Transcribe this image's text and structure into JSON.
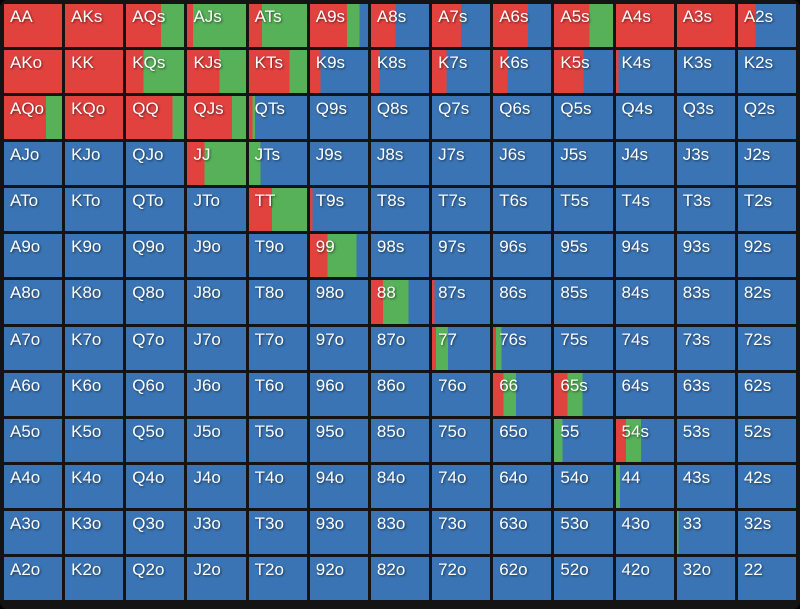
{
  "meta": {
    "title": "Preflop poker hand range grid",
    "description": "13x13 poker starting-hand matrix; each cell shows action frequencies as left-to-right color strips"
  },
  "colors": {
    "raise_red": "#e2423e",
    "call_green": "#57b158",
    "fold_blue": "#3a74b4",
    "grid_background": "#141414",
    "label_text": "#ffffff"
  },
  "chart_data": {
    "type": "heatmap",
    "rows": 13,
    "cols": 13,
    "legend": {
      "red": "raise %",
      "green": "call %",
      "blue": "fold %"
    },
    "cells": [
      {
        "h": "AA",
        "r": 100,
        "c": 0,
        "f": 0
      },
      {
        "h": "AKs",
        "r": 100,
        "c": 0,
        "f": 0
      },
      {
        "h": "AQs",
        "r": 60,
        "c": 40,
        "f": 0
      },
      {
        "h": "AJs",
        "r": 10,
        "c": 90,
        "f": 0
      },
      {
        "h": "ATs",
        "r": 22,
        "c": 78,
        "f": 0
      },
      {
        "h": "A9s",
        "r": 64,
        "c": 21,
        "f": 15
      },
      {
        "h": "A8s",
        "r": 42,
        "c": 0,
        "f": 58
      },
      {
        "h": "A7s",
        "r": 50,
        "c": 0,
        "f": 50
      },
      {
        "h": "A6s",
        "r": 60,
        "c": 0,
        "f": 40
      },
      {
        "h": "A5s",
        "r": 60,
        "c": 40,
        "f": 0
      },
      {
        "h": "A4s",
        "r": 100,
        "c": 0,
        "f": 0
      },
      {
        "h": "A3s",
        "r": 100,
        "c": 0,
        "f": 0
      },
      {
        "h": "A2s",
        "r": 30,
        "c": 0,
        "f": 70
      },
      {
        "h": "AKo",
        "r": 100,
        "c": 0,
        "f": 0
      },
      {
        "h": "KK",
        "r": 100,
        "c": 0,
        "f": 0
      },
      {
        "h": "KQs",
        "r": 30,
        "c": 70,
        "f": 0
      },
      {
        "h": "KJs",
        "r": 55,
        "c": 45,
        "f": 0
      },
      {
        "h": "KTs",
        "r": 70,
        "c": 30,
        "f": 0
      },
      {
        "h": "K9s",
        "r": 18,
        "c": 0,
        "f": 82
      },
      {
        "h": "K8s",
        "r": 15,
        "c": 0,
        "f": 85
      },
      {
        "h": "K7s",
        "r": 25,
        "c": 0,
        "f": 75
      },
      {
        "h": "K6s",
        "r": 25,
        "c": 0,
        "f": 75
      },
      {
        "h": "K5s",
        "r": 50,
        "c": 0,
        "f": 50
      },
      {
        "h": "K4s",
        "r": 4,
        "c": 0,
        "f": 96
      },
      {
        "h": "K3s",
        "r": 0,
        "c": 0,
        "f": 100
      },
      {
        "h": "K2s",
        "r": 0,
        "c": 0,
        "f": 100
      },
      {
        "h": "AQo",
        "r": 72,
        "c": 28,
        "f": 0
      },
      {
        "h": "KQo",
        "r": 100,
        "c": 0,
        "f": 0
      },
      {
        "h": "QQ",
        "r": 80,
        "c": 20,
        "f": 0
      },
      {
        "h": "QJs",
        "r": 76,
        "c": 24,
        "f": 0
      },
      {
        "h": "QTs",
        "r": 6,
        "c": 4,
        "f": 90
      },
      {
        "h": "Q9s",
        "r": 0,
        "c": 0,
        "f": 100
      },
      {
        "h": "Q8s",
        "r": 0,
        "c": 0,
        "f": 100
      },
      {
        "h": "Q7s",
        "r": 0,
        "c": 0,
        "f": 100
      },
      {
        "h": "Q6s",
        "r": 0,
        "c": 0,
        "f": 100
      },
      {
        "h": "Q5s",
        "r": 0,
        "c": 0,
        "f": 100
      },
      {
        "h": "Q4s",
        "r": 0,
        "c": 0,
        "f": 100
      },
      {
        "h": "Q3s",
        "r": 0,
        "c": 0,
        "f": 100
      },
      {
        "h": "Q2s",
        "r": 0,
        "c": 0,
        "f": 100
      },
      {
        "h": "AJo",
        "r": 0,
        "c": 0,
        "f": 100
      },
      {
        "h": "KJo",
        "r": 0,
        "c": 0,
        "f": 100
      },
      {
        "h": "QJo",
        "r": 0,
        "c": 0,
        "f": 100
      },
      {
        "h": "JJ",
        "r": 30,
        "c": 70,
        "f": 0
      },
      {
        "h": "JTs",
        "r": 0,
        "c": 20,
        "f": 80
      },
      {
        "h": "J9s",
        "r": 0,
        "c": 0,
        "f": 100
      },
      {
        "h": "J8s",
        "r": 0,
        "c": 0,
        "f": 100
      },
      {
        "h": "J7s",
        "r": 0,
        "c": 0,
        "f": 100
      },
      {
        "h": "J6s",
        "r": 0,
        "c": 0,
        "f": 100
      },
      {
        "h": "J5s",
        "r": 0,
        "c": 0,
        "f": 100
      },
      {
        "h": "J4s",
        "r": 0,
        "c": 0,
        "f": 100
      },
      {
        "h": "J3s",
        "r": 0,
        "c": 0,
        "f": 100
      },
      {
        "h": "J2s",
        "r": 0,
        "c": 0,
        "f": 100
      },
      {
        "h": "ATo",
        "r": 0,
        "c": 0,
        "f": 100
      },
      {
        "h": "KTo",
        "r": 0,
        "c": 0,
        "f": 100
      },
      {
        "h": "QTo",
        "r": 0,
        "c": 0,
        "f": 100
      },
      {
        "h": "JTo",
        "r": 0,
        "c": 0,
        "f": 100
      },
      {
        "h": "TT",
        "r": 40,
        "c": 60,
        "f": 0
      },
      {
        "h": "T9s",
        "r": 4,
        "c": 0,
        "f": 96
      },
      {
        "h": "T8s",
        "r": 0,
        "c": 0,
        "f": 100
      },
      {
        "h": "T7s",
        "r": 0,
        "c": 0,
        "f": 100
      },
      {
        "h": "T6s",
        "r": 0,
        "c": 0,
        "f": 100
      },
      {
        "h": "T5s",
        "r": 0,
        "c": 0,
        "f": 100
      },
      {
        "h": "T4s",
        "r": 0,
        "c": 0,
        "f": 100
      },
      {
        "h": "T3s",
        "r": 0,
        "c": 0,
        "f": 100
      },
      {
        "h": "T2s",
        "r": 0,
        "c": 0,
        "f": 100
      },
      {
        "h": "A9o",
        "r": 0,
        "c": 0,
        "f": 100
      },
      {
        "h": "K9o",
        "r": 0,
        "c": 0,
        "f": 100
      },
      {
        "h": "Q9o",
        "r": 0,
        "c": 0,
        "f": 100
      },
      {
        "h": "J9o",
        "r": 0,
        "c": 0,
        "f": 100
      },
      {
        "h": "T9o",
        "r": 0,
        "c": 0,
        "f": 100
      },
      {
        "h": "99",
        "r": 30,
        "c": 50,
        "f": 20
      },
      {
        "h": "98s",
        "r": 0,
        "c": 0,
        "f": 100
      },
      {
        "h": "97s",
        "r": 0,
        "c": 0,
        "f": 100
      },
      {
        "h": "96s",
        "r": 0,
        "c": 0,
        "f": 100
      },
      {
        "h": "95s",
        "r": 0,
        "c": 0,
        "f": 100
      },
      {
        "h": "94s",
        "r": 0,
        "c": 0,
        "f": 100
      },
      {
        "h": "93s",
        "r": 0,
        "c": 0,
        "f": 100
      },
      {
        "h": "92s",
        "r": 0,
        "c": 0,
        "f": 100
      },
      {
        "h": "A8o",
        "r": 0,
        "c": 0,
        "f": 100
      },
      {
        "h": "K8o",
        "r": 0,
        "c": 0,
        "f": 100
      },
      {
        "h": "Q8o",
        "r": 0,
        "c": 0,
        "f": 100
      },
      {
        "h": "J8o",
        "r": 0,
        "c": 0,
        "f": 100
      },
      {
        "h": "T8o",
        "r": 0,
        "c": 0,
        "f": 100
      },
      {
        "h": "98o",
        "r": 0,
        "c": 0,
        "f": 100
      },
      {
        "h": "88",
        "r": 21,
        "c": 44,
        "f": 35
      },
      {
        "h": "87s",
        "r": 4,
        "c": 0,
        "f": 96
      },
      {
        "h": "86s",
        "r": 0,
        "c": 0,
        "f": 100
      },
      {
        "h": "85s",
        "r": 0,
        "c": 0,
        "f": 100
      },
      {
        "h": "84s",
        "r": 0,
        "c": 0,
        "f": 100
      },
      {
        "h": "83s",
        "r": 0,
        "c": 0,
        "f": 100
      },
      {
        "h": "82s",
        "r": 0,
        "c": 0,
        "f": 100
      },
      {
        "h": "A7o",
        "r": 0,
        "c": 0,
        "f": 100
      },
      {
        "h": "K7o",
        "r": 0,
        "c": 0,
        "f": 100
      },
      {
        "h": "Q7o",
        "r": 0,
        "c": 0,
        "f": 100
      },
      {
        "h": "J7o",
        "r": 0,
        "c": 0,
        "f": 100
      },
      {
        "h": "T7o",
        "r": 0,
        "c": 0,
        "f": 100
      },
      {
        "h": "97o",
        "r": 0,
        "c": 0,
        "f": 100
      },
      {
        "h": "87o",
        "r": 0,
        "c": 0,
        "f": 100
      },
      {
        "h": "77",
        "r": 7,
        "c": 21,
        "f": 72
      },
      {
        "h": "76s",
        "r": 5,
        "c": 10,
        "f": 85
      },
      {
        "h": "75s",
        "r": 0,
        "c": 0,
        "f": 100
      },
      {
        "h": "74s",
        "r": 0,
        "c": 0,
        "f": 100
      },
      {
        "h": "73s",
        "r": 0,
        "c": 0,
        "f": 100
      },
      {
        "h": "72s",
        "r": 0,
        "c": 0,
        "f": 100
      },
      {
        "h": "A6o",
        "r": 0,
        "c": 0,
        "f": 100
      },
      {
        "h": "K6o",
        "r": 0,
        "c": 0,
        "f": 100
      },
      {
        "h": "Q6o",
        "r": 0,
        "c": 0,
        "f": 100
      },
      {
        "h": "J6o",
        "r": 0,
        "c": 0,
        "f": 100
      },
      {
        "h": "T6o",
        "r": 0,
        "c": 0,
        "f": 100
      },
      {
        "h": "96o",
        "r": 0,
        "c": 0,
        "f": 100
      },
      {
        "h": "86o",
        "r": 0,
        "c": 0,
        "f": 100
      },
      {
        "h": "76o",
        "r": 0,
        "c": 0,
        "f": 100
      },
      {
        "h": "66",
        "r": 18,
        "c": 22,
        "f": 60
      },
      {
        "h": "65s",
        "r": 23,
        "c": 25,
        "f": 52
      },
      {
        "h": "64s",
        "r": 0,
        "c": 0,
        "f": 100
      },
      {
        "h": "63s",
        "r": 0,
        "c": 0,
        "f": 100
      },
      {
        "h": "62s",
        "r": 0,
        "c": 0,
        "f": 100
      },
      {
        "h": "A5o",
        "r": 0,
        "c": 0,
        "f": 100
      },
      {
        "h": "K5o",
        "r": 0,
        "c": 0,
        "f": 100
      },
      {
        "h": "Q5o",
        "r": 0,
        "c": 0,
        "f": 100
      },
      {
        "h": "J5o",
        "r": 0,
        "c": 0,
        "f": 100
      },
      {
        "h": "T5o",
        "r": 0,
        "c": 0,
        "f": 100
      },
      {
        "h": "95o",
        "r": 0,
        "c": 0,
        "f": 100
      },
      {
        "h": "85o",
        "r": 0,
        "c": 0,
        "f": 100
      },
      {
        "h": "75o",
        "r": 0,
        "c": 0,
        "f": 100
      },
      {
        "h": "65o",
        "r": 0,
        "c": 0,
        "f": 100
      },
      {
        "h": "55",
        "r": 0,
        "c": 14,
        "f": 86
      },
      {
        "h": "54s",
        "r": 17,
        "c": 26,
        "f": 57
      },
      {
        "h": "53s",
        "r": 0,
        "c": 0,
        "f": 100
      },
      {
        "h": "52s",
        "r": 0,
        "c": 0,
        "f": 100
      },
      {
        "h": "A4o",
        "r": 0,
        "c": 0,
        "f": 100
      },
      {
        "h": "K4o",
        "r": 0,
        "c": 0,
        "f": 100
      },
      {
        "h": "Q4o",
        "r": 0,
        "c": 0,
        "f": 100
      },
      {
        "h": "J4o",
        "r": 0,
        "c": 0,
        "f": 100
      },
      {
        "h": "T4o",
        "r": 0,
        "c": 0,
        "f": 100
      },
      {
        "h": "94o",
        "r": 0,
        "c": 0,
        "f": 100
      },
      {
        "h": "84o",
        "r": 0,
        "c": 0,
        "f": 100
      },
      {
        "h": "74o",
        "r": 0,
        "c": 0,
        "f": 100
      },
      {
        "h": "64o",
        "r": 0,
        "c": 0,
        "f": 100
      },
      {
        "h": "54o",
        "r": 0,
        "c": 0,
        "f": 100
      },
      {
        "h": "44",
        "r": 0,
        "c": 7,
        "f": 93
      },
      {
        "h": "43s",
        "r": 0,
        "c": 0,
        "f": 100
      },
      {
        "h": "42s",
        "r": 0,
        "c": 0,
        "f": 100
      },
      {
        "h": "A3o",
        "r": 0,
        "c": 0,
        "f": 100
      },
      {
        "h": "K3o",
        "r": 0,
        "c": 0,
        "f": 100
      },
      {
        "h": "Q3o",
        "r": 0,
        "c": 0,
        "f": 100
      },
      {
        "h": "J3o",
        "r": 0,
        "c": 0,
        "f": 100
      },
      {
        "h": "T3o",
        "r": 0,
        "c": 0,
        "f": 100
      },
      {
        "h": "93o",
        "r": 0,
        "c": 0,
        "f": 100
      },
      {
        "h": "83o",
        "r": 0,
        "c": 0,
        "f": 100
      },
      {
        "h": "73o",
        "r": 0,
        "c": 0,
        "f": 100
      },
      {
        "h": "63o",
        "r": 0,
        "c": 0,
        "f": 100
      },
      {
        "h": "53o",
        "r": 0,
        "c": 0,
        "f": 100
      },
      {
        "h": "43o",
        "r": 0,
        "c": 0,
        "f": 100
      },
      {
        "h": "33",
        "r": 0,
        "c": 3,
        "f": 97
      },
      {
        "h": "32s",
        "r": 0,
        "c": 0,
        "f": 100
      },
      {
        "h": "A2o",
        "r": 0,
        "c": 0,
        "f": 100
      },
      {
        "h": "K2o",
        "r": 0,
        "c": 0,
        "f": 100
      },
      {
        "h": "Q2o",
        "r": 0,
        "c": 0,
        "f": 100
      },
      {
        "h": "J2o",
        "r": 0,
        "c": 0,
        "f": 100
      },
      {
        "h": "T2o",
        "r": 0,
        "c": 0,
        "f": 100
      },
      {
        "h": "92o",
        "r": 0,
        "c": 0,
        "f": 100
      },
      {
        "h": "82o",
        "r": 0,
        "c": 0,
        "f": 100
      },
      {
        "h": "72o",
        "r": 0,
        "c": 0,
        "f": 100
      },
      {
        "h": "62o",
        "r": 0,
        "c": 0,
        "f": 100
      },
      {
        "h": "52o",
        "r": 0,
        "c": 0,
        "f": 100
      },
      {
        "h": "42o",
        "r": 0,
        "c": 0,
        "f": 100
      },
      {
        "h": "32o",
        "r": 0,
        "c": 0,
        "f": 100
      },
      {
        "h": "22",
        "r": 0,
        "c": 0,
        "f": 100
      }
    ]
  }
}
